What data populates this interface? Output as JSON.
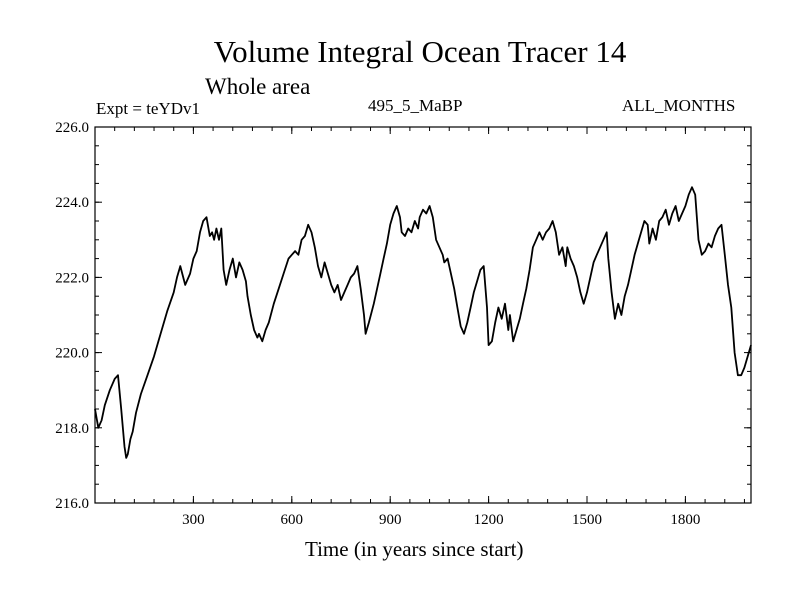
{
  "chart_data": {
    "type": "line",
    "title": "Volume Integral Ocean Tracer 14",
    "subtitle": "Whole area",
    "top_left_label": "Expt = teYDv1",
    "top_center_label": "495_5_MaBP",
    "top_right_label": "ALL_MONTHS",
    "xlabel": "Time (in years since start)",
    "ylabel": "",
    "xlim": [
      0,
      2000
    ],
    "ylim": [
      216.0,
      226.0
    ],
    "xticks": [
      300,
      600,
      900,
      1200,
      1500,
      1800
    ],
    "xtick_labels": [
      "300",
      "600",
      "900",
      "1200",
      "1500",
      "1800"
    ],
    "yticks": [
      216.0,
      218.0,
      220.0,
      222.0,
      224.0,
      226.0
    ],
    "ytick_labels": [
      "216.0",
      "218.0",
      "220.0",
      "222.0",
      "224.0",
      "226.0"
    ],
    "grid": false,
    "series": [
      {
        "name": "Volume Integral Ocean Tracer 14",
        "x": [
          0,
          10,
          20,
          30,
          45,
          60,
          70,
          80,
          90,
          95,
          100,
          108,
          115,
          125,
          140,
          160,
          180,
          200,
          220,
          240,
          250,
          260,
          275,
          290,
          300,
          310,
          320,
          330,
          340,
          350,
          357,
          363,
          370,
          378,
          385,
          392,
          400,
          410,
          420,
          430,
          440,
          450,
          460,
          465,
          475,
          485,
          495,
          500,
          510,
          520,
          530,
          545,
          560,
          575,
          590,
          600,
          610,
          620,
          630,
          640,
          650,
          660,
          670,
          680,
          690,
          700,
          710,
          720,
          730,
          740,
          750,
          760,
          770,
          780,
          790,
          800,
          810,
          820,
          825,
          835,
          850,
          860,
          870,
          880,
          890,
          900,
          910,
          920,
          930,
          935,
          945,
          955,
          965,
          975,
          985,
          990,
          1000,
          1010,
          1020,
          1030,
          1040,
          1050,
          1060,
          1065,
          1075,
          1085,
          1095,
          1105,
          1115,
          1125,
          1135,
          1145,
          1155,
          1165,
          1175,
          1185,
          1195,
          1200,
          1210,
          1220,
          1230,
          1240,
          1250,
          1260,
          1265,
          1275,
          1285,
          1295,
          1305,
          1315,
          1325,
          1335,
          1345,
          1355,
          1365,
          1375,
          1385,
          1395,
          1405,
          1415,
          1425,
          1435,
          1440,
          1450,
          1460,
          1470,
          1480,
          1490,
          1500,
          1510,
          1520,
          1530,
          1540,
          1550,
          1560,
          1565,
          1575,
          1585,
          1595,
          1605,
          1615,
          1625,
          1635,
          1645,
          1655,
          1665,
          1675,
          1685,
          1690,
          1700,
          1710,
          1720,
          1730,
          1740,
          1750,
          1760,
          1770,
          1780,
          1790,
          1800,
          1810,
          1820,
          1830,
          1840,
          1850,
          1860,
          1870,
          1880,
          1890,
          1900,
          1910,
          1920,
          1930,
          1940,
          1950,
          1960,
          1970,
          1980,
          1990,
          2000
        ],
        "y": [
          218.5,
          218.0,
          218.2,
          218.6,
          219.0,
          219.3,
          219.4,
          218.5,
          217.5,
          217.2,
          217.3,
          217.7,
          217.9,
          218.4,
          218.9,
          219.4,
          219.9,
          220.5,
          221.1,
          221.6,
          222.0,
          222.3,
          221.8,
          222.1,
          222.5,
          222.7,
          223.2,
          223.5,
          223.6,
          223.1,
          223.2,
          223.0,
          223.3,
          223.0,
          223.3,
          222.2,
          221.8,
          222.2,
          222.5,
          222.0,
          222.4,
          222.2,
          221.9,
          221.5,
          221.0,
          220.6,
          220.4,
          220.5,
          220.3,
          220.6,
          220.8,
          221.3,
          221.7,
          222.1,
          222.5,
          222.6,
          222.7,
          222.6,
          223.0,
          223.1,
          223.4,
          223.2,
          222.8,
          222.3,
          222.0,
          222.4,
          222.1,
          221.8,
          221.6,
          221.8,
          221.4,
          221.6,
          221.8,
          222.0,
          222.1,
          222.3,
          221.7,
          221.0,
          220.5,
          220.8,
          221.3,
          221.7,
          222.1,
          222.5,
          222.9,
          223.4,
          223.7,
          223.9,
          223.6,
          223.2,
          223.1,
          223.3,
          223.2,
          223.5,
          223.3,
          223.6,
          223.8,
          223.7,
          223.9,
          223.6,
          223.0,
          222.8,
          222.6,
          222.4,
          222.5,
          222.1,
          221.7,
          221.2,
          220.7,
          220.5,
          220.8,
          221.2,
          221.6,
          221.9,
          222.2,
          222.3,
          221.2,
          220.2,
          220.3,
          220.8,
          221.2,
          220.9,
          221.3,
          220.6,
          221.0,
          220.3,
          220.6,
          220.9,
          221.3,
          221.7,
          222.2,
          222.8,
          223.0,
          223.2,
          223.0,
          223.2,
          223.3,
          223.5,
          223.2,
          222.6,
          222.8,
          222.3,
          222.8,
          222.5,
          222.3,
          222.0,
          221.6,
          221.3,
          221.6,
          222.0,
          222.4,
          222.6,
          222.8,
          223.0,
          223.2,
          222.5,
          221.6,
          220.9,
          221.3,
          221.0,
          221.5,
          221.8,
          222.2,
          222.6,
          222.9,
          223.2,
          223.5,
          223.4,
          222.9,
          223.3,
          223.0,
          223.5,
          223.6,
          223.8,
          223.4,
          223.7,
          223.9,
          223.5,
          223.7,
          223.9,
          224.2,
          224.4,
          224.2,
          223.0,
          222.6,
          222.7,
          222.9,
          222.8,
          223.1,
          223.3,
          223.4,
          222.6,
          221.8,
          221.2,
          220.0,
          219.4,
          219.4,
          219.6,
          219.9,
          220.2
        ]
      }
    ]
  }
}
